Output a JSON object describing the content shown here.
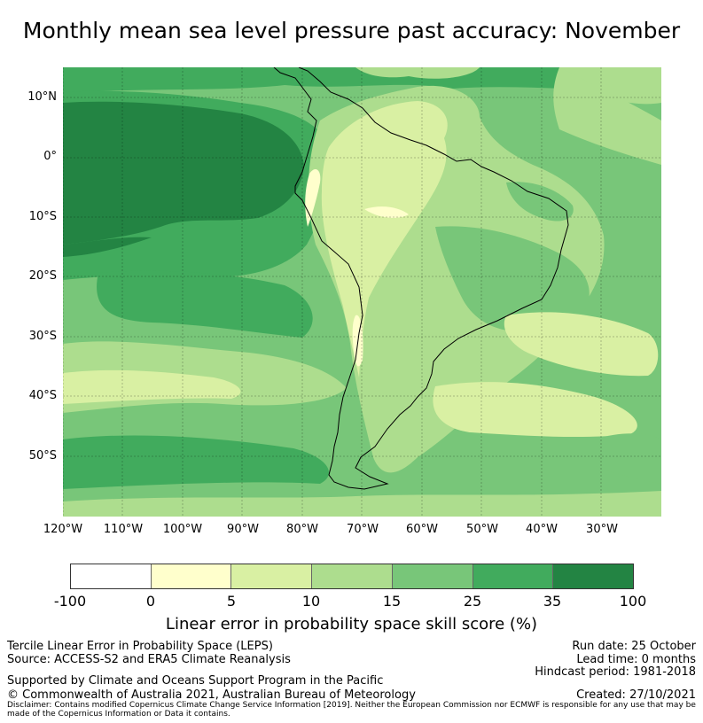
{
  "title": "Monthly mean sea level pressure past accuracy: November",
  "map": {
    "lat_labels": [
      "10°N",
      "0°",
      "10°S",
      "20°S",
      "30°S",
      "40°S",
      "50°S"
    ],
    "lon_labels": [
      "120°W",
      "110°W",
      "100°W",
      "90°W",
      "80°W",
      "70°W",
      "60°W",
      "50°W",
      "40°W",
      "30°W"
    ]
  },
  "colorbar": {
    "ticks": [
      "-100",
      "0",
      "5",
      "10",
      "15",
      "25",
      "35",
      "100"
    ],
    "colors": [
      "#ffffff",
      "#ffffcc",
      "#d9f0a3",
      "#addd8e",
      "#78c679",
      "#41ab5d",
      "#238443"
    ],
    "label": "Linear error in probability space skill score (%)"
  },
  "footer": {
    "left1": "Tercile Linear Error in Probability Space (LEPS)",
    "left2": "Source: ACCESS-S2 and ERA5 Climate Reanalysis",
    "left3": "Supported by Climate and Oceans Support Program in the Pacific",
    "left4": "© Commonwealth of Australia 2021, Australian Bureau of Meteorology",
    "right1": "Run date: 25 October",
    "right2": "Lead time: 0 months",
    "right3": "Hindcast period: 1981-2018",
    "right4": "Created: 27/10/2021",
    "disclaimer": "Disclaimer: Contains modified Copernicus Climate Change Service Information [2019]. Neither the European Commission nor ECMWF is responsible for any use that may be made of the Copernicus Information or Data it contains."
  }
}
